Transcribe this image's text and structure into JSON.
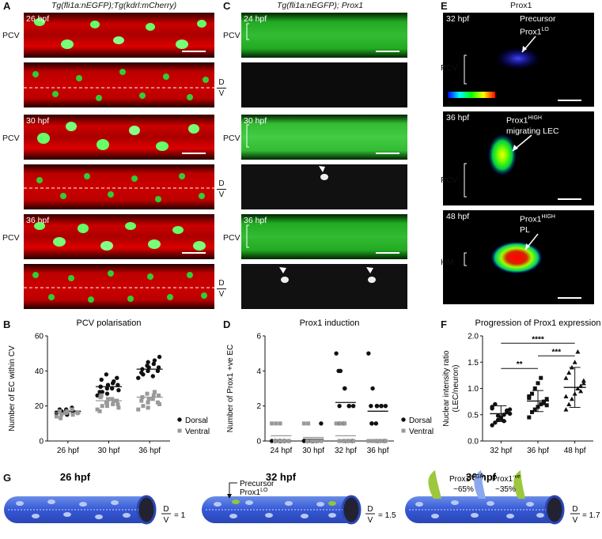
{
  "panels": {
    "A": {
      "letter": "A",
      "title": "Tg(fli1a:nEGFP);Tg(kdrl:mCherry)",
      "side": "PCV",
      "dorsal": "D",
      "ventral": "V",
      "times": [
        "26 hpf",
        "30 hpf",
        "36 hpf"
      ]
    },
    "B": {
      "letter": "B"
    },
    "C": {
      "letter": "C",
      "title": "Tg(fli1a:nEGFP); Prox1",
      "side": "PCV",
      "times": [
        "24 hpf",
        "30 hpf",
        "36 hpf"
      ]
    },
    "D": {
      "letter": "D"
    },
    "E": {
      "letter": "E",
      "title": "Prox1",
      "times": [
        "32 hpf",
        "36 hpf",
        "48 hpf"
      ],
      "sides": [
        "PCV",
        "PCV",
        "HM"
      ],
      "ann": [
        {
          "l1": "Precursor",
          "l2": "Prox1",
          "sup": "LO"
        },
        {
          "l1": "Prox1",
          "sup": "HIGH",
          "l2": "migrating LEC"
        },
        {
          "l1": "Prox1",
          "sup": "HIGH",
          "l2": "PL"
        }
      ]
    },
    "F": {
      "letter": "F"
    },
    "G": {
      "letter": "G",
      "stages": [
        "26 hpf",
        "32 hpf",
        "36 hpf"
      ],
      "d": "D",
      "v": "V",
      "ratios": [
        "= 1",
        "= 1.5",
        "= 1.7"
      ],
      "precursor": "Precursor",
      "prox1": "Prox1",
      "lo": "LO",
      "high": "HIGH",
      "neg": "-ve",
      "pct_high": "~65%",
      "pct_neg": "~35%"
    }
  },
  "chart_data": [
    {
      "id": "B",
      "type": "scatter",
      "title": "PCV polarisation",
      "ylabel": "Number of EC within CV",
      "ylim": [
        0,
        60
      ],
      "yticks": [
        0,
        20,
        40,
        60
      ],
      "categories": [
        "26 hpf",
        "30 hpf",
        "36 hpf"
      ],
      "legend": [
        "Dorsal",
        "Ventral"
      ],
      "series": [
        {
          "name": "Dorsal",
          "color": "#111111",
          "marker": "circle",
          "means": [
            17,
            31,
            41
          ],
          "points": [
            [
              16,
              17,
              18,
              15,
              19,
              17,
              16,
              18,
              17,
              16
            ],
            [
              26,
              28,
              30,
              32,
              33,
              34,
              29,
              31,
              35,
              38,
              27,
              30,
              36,
              32,
              28,
              31
            ],
            [
              36,
              38,
              40,
              42,
              44,
              46,
              48,
              39,
              41,
              43,
              45,
              37,
              40,
              42
            ]
          ]
        },
        {
          "name": "Ventral",
          "color": "#999999",
          "marker": "square",
          "means": [
            16,
            23,
            25
          ],
          "points": [
            [
              14,
              15,
              16,
              17,
              18,
              15,
              16,
              17,
              13,
              16
            ],
            [
              18,
              20,
              22,
              24,
              21,
              23,
              19,
              25,
              26,
              22,
              20,
              24,
              23,
              21,
              17,
              25
            ],
            [
              18,
              20,
              22,
              24,
              26,
              28,
              21,
              23,
              25,
              27,
              19,
              24,
              22,
              26
            ]
          ]
        }
      ]
    },
    {
      "id": "D",
      "type": "scatter",
      "title": "Prox1 induction",
      "ylabel": "Number of Prox1 +ve EC",
      "ylim": [
        0,
        6
      ],
      "yticks": [
        0,
        2,
        4,
        6
      ],
      "categories": [
        "24 hpf",
        "30 hpf",
        "32 hpf",
        "36 hpf"
      ],
      "legend": [
        "Dorsal",
        "Ventral"
      ],
      "series": [
        {
          "name": "Dorsal",
          "color": "#111111",
          "marker": "circle",
          "means": [
            0,
            0.1,
            2.2,
            1.7
          ],
          "points": [
            [
              0,
              0,
              0,
              0,
              0,
              0,
              0,
              0,
              0,
              0,
              0,
              0
            ],
            [
              0,
              0,
              0,
              0,
              0,
              0,
              1,
              0,
              0,
              0,
              0,
              0
            ],
            [
              5,
              4,
              3,
              3,
              2,
              2,
              2,
              2,
              1,
              1,
              0,
              0,
              0,
              0,
              4
            ],
            [
              5,
              3,
              2,
              2,
              2,
              2,
              2,
              1,
              1,
              1,
              0,
              0,
              0,
              0,
              2
            ]
          ]
        },
        {
          "name": "Ventral",
          "color": "#999999",
          "marker": "square",
          "means": [
            0.3,
            0.2,
            0.3,
            0
          ],
          "points": [
            [
              1,
              1,
              1,
              0,
              0,
              0,
              0,
              0,
              0,
              0,
              0,
              0
            ],
            [
              1,
              1,
              0,
              0,
              0,
              0,
              0,
              0,
              0,
              0,
              0,
              0
            ],
            [
              1,
              1,
              1,
              0,
              0,
              0,
              0,
              0,
              0,
              0,
              0,
              0
            ],
            [
              0,
              0,
              0,
              0,
              0,
              0,
              0,
              0,
              0,
              0,
              0,
              0
            ]
          ]
        }
      ]
    },
    {
      "id": "F",
      "type": "scatter",
      "title": "Progression of Prox1 expression",
      "ylabel": "Nuclear intensity ratio",
      "ylabel2": "(LEC/neuron)",
      "ylim": [
        0,
        2
      ],
      "yticks": [
        0,
        0.5,
        1,
        1.5,
        2
      ],
      "ytick_labels": [
        "0.0",
        "0.5",
        "1.0",
        "1.5",
        "2.0"
      ],
      "categories": [
        "32 hpf",
        "36 hpf",
        "48 hpf"
      ],
      "series": [
        {
          "name": "32 hpf",
          "marker": "circle",
          "color": "#111111",
          "mean": 0.52,
          "sem": 0.15,
          "points": [
            0.3,
            0.35,
            0.4,
            0.45,
            0.5,
            0.55,
            0.6,
            0.65,
            0.7,
            0.48,
            0.42,
            0.38,
            0.58,
            0.52,
            0.62
          ]
        },
        {
          "name": "36 hpf",
          "marker": "square",
          "color": "#111111",
          "mean": 0.76,
          "sem": 0.2,
          "points": [
            0.45,
            0.55,
            0.6,
            0.65,
            0.7,
            0.75,
            0.8,
            0.85,
            0.9,
            1.0,
            1.1,
            1.2,
            0.72,
            0.68,
            0.82
          ]
        },
        {
          "name": "48 hpf",
          "marker": "triangle",
          "color": "#111111",
          "mean": 1.02,
          "sem": 0.38,
          "points": [
            0.6,
            0.7,
            0.8,
            0.9,
            1.0,
            1.05,
            1.1,
            1.2,
            1.3,
            1.4,
            1.5,
            1.7,
            0.95,
            1.15,
            0.85
          ]
        }
      ],
      "significance": [
        {
          "pair": [
            0,
            1
          ],
          "label": "**"
        },
        {
          "pair": [
            1,
            2
          ],
          "label": "***"
        },
        {
          "pair": [
            0,
            2
          ],
          "label": "****"
        }
      ]
    }
  ]
}
